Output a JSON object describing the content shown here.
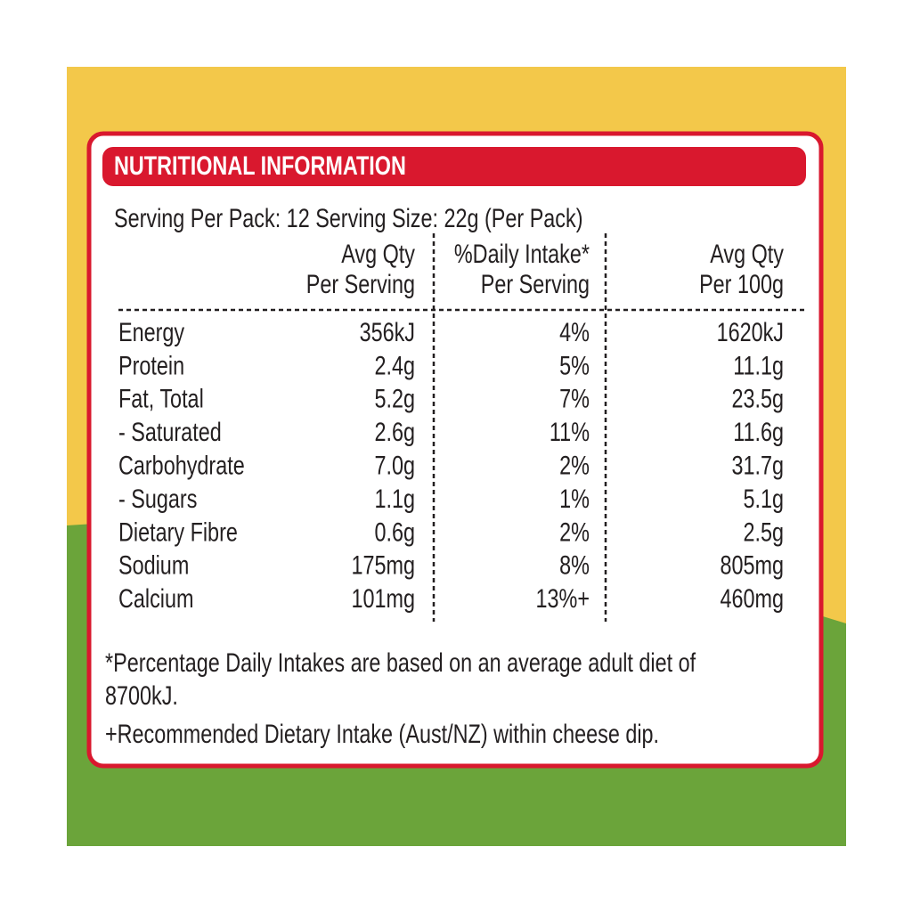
{
  "header": {
    "title": "NUTRITIONAL INFORMATION"
  },
  "serving": "Serving Per Pack: 12  Serving Size: 22g (Per Pack)",
  "table": {
    "columns": [
      [
        "Avg Qty",
        "Per Serving"
      ],
      [
        "%Daily Intake*",
        "Per Serving"
      ],
      [
        "Avg Qty",
        "Per 100g"
      ]
    ],
    "rows": [
      [
        "Energy",
        "356kJ",
        "4%",
        "1620kJ"
      ],
      [
        "Protein",
        "2.4g",
        "5%",
        "11.1g"
      ],
      [
        "Fat, Total",
        "5.2g",
        "7%",
        "23.5g"
      ],
      [
        "- Saturated",
        "2.6g",
        "11%",
        "11.6g"
      ],
      [
        "Carbohydrate",
        "7.0g",
        "2%",
        "31.7g"
      ],
      [
        "- Sugars",
        "1.1g",
        "1%",
        "5.1g"
      ],
      [
        "Dietary Fibre",
        "0.6g",
        "2%",
        "2.5g"
      ],
      [
        "Sodium",
        "175mg",
        "8%",
        "805mg"
      ],
      [
        "Calcium",
        "101mg",
        "13%+",
        "460mg"
      ]
    ]
  },
  "footnotes": [
    [
      "*Percentage Daily Intakes are based on an average adult diet of",
      "8700kJ."
    ],
    [
      "+Recommended Dietary Intake (Aust/NZ) within cheese dip."
    ]
  ]
}
